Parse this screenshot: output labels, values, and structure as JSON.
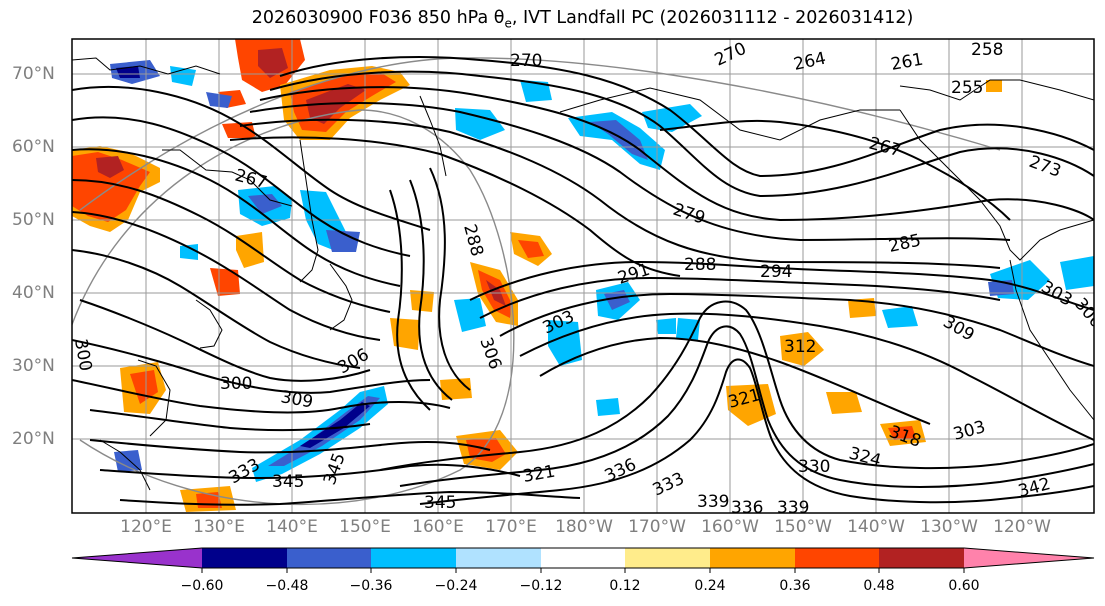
{
  "title": {
    "prefix": "2026030900 F036 850 hPa θ",
    "sub": "e",
    "suffix": ", IVT Landfall PC (2026031112 - 2026031412)"
  },
  "lat_labels": [
    "70°N",
    "60°N",
    "50°N",
    "40°N",
    "30°N",
    "20°N"
  ],
  "lon_labels": [
    "120°E",
    "130°E",
    "140°E",
    "150°E",
    "160°E",
    "170°E",
    "180°W",
    "170°W",
    "160°W",
    "150°W",
    "140°W",
    "130°W",
    "120°W"
  ],
  "colorbar": {
    "ticks": [
      "−0.60",
      "−0.48",
      "−0.36",
      "−0.24",
      "−0.12",
      "0.12",
      "0.24",
      "0.36",
      "0.48",
      "0.60"
    ],
    "colors": [
      "#9932cc",
      "#00008b",
      "#3a5fcd",
      "#00bfff",
      "#b0e2ff",
      "#ffffff",
      "#ffec8b",
      "#ffa500",
      "#ff4500",
      "#b22222",
      "#ff82ab"
    ]
  },
  "contour_labels": [
    "270",
    "264",
    "261",
    "258",
    "255",
    "267",
    "273",
    "279",
    "285",
    "288",
    "291",
    "294",
    "303",
    "306",
    "300",
    "309",
    "312",
    "321",
    "318",
    "324",
    "330",
    "333",
    "336",
    "339",
    "342",
    "345"
  ]
}
